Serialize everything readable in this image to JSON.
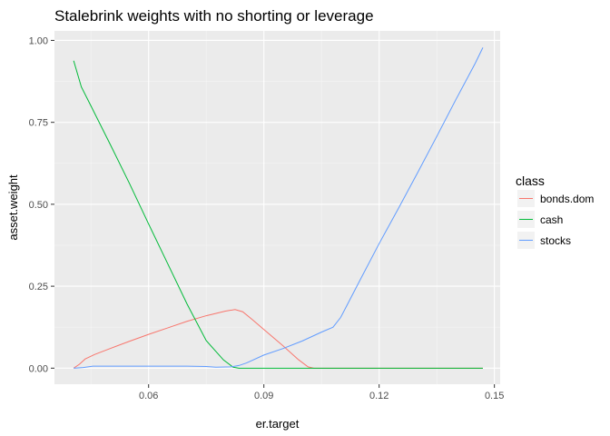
{
  "chart_data": {
    "type": "line",
    "title": "Stalebrink weights with no shorting or leverage",
    "xlabel": "er.target",
    "ylabel": "asset.weight",
    "xlim": [
      0.0355,
      0.1515
    ],
    "ylim": [
      -0.049,
      1.029
    ],
    "x_ticks": [
      0.06,
      0.09,
      0.12,
      0.15
    ],
    "x_tick_labels": [
      "0.06",
      "0.09",
      "0.12",
      "0.15"
    ],
    "y_ticks": [
      0.0,
      0.25,
      0.5,
      0.75,
      1.0
    ],
    "y_tick_labels": [
      "0.00",
      "0.25",
      "0.50",
      "0.75",
      "1.00"
    ],
    "grid": true,
    "legend": {
      "title": "class",
      "position": "right"
    },
    "series": [
      {
        "name": "bonds.dom",
        "color": "#F8766D",
        "points": [
          [
            0.0405,
            0.0
          ],
          [
            0.042,
            0.012
          ],
          [
            0.0435,
            0.028
          ],
          [
            0.046,
            0.042
          ],
          [
            0.05,
            0.06
          ],
          [
            0.055,
            0.082
          ],
          [
            0.06,
            0.103
          ],
          [
            0.065,
            0.123
          ],
          [
            0.07,
            0.143
          ],
          [
            0.075,
            0.16
          ],
          [
            0.08,
            0.174
          ],
          [
            0.0825,
            0.179
          ],
          [
            0.0845,
            0.172
          ],
          [
            0.087,
            0.148
          ],
          [
            0.09,
            0.118
          ],
          [
            0.095,
            0.068
          ],
          [
            0.099,
            0.026
          ],
          [
            0.1015,
            0.004
          ],
          [
            0.103,
            0.0
          ],
          [
            0.147,
            0.0
          ]
        ]
      },
      {
        "name": "cash",
        "color": "#00BA38",
        "points": [
          [
            0.0405,
            0.938
          ],
          [
            0.0425,
            0.858
          ],
          [
            0.045,
            0.8
          ],
          [
            0.05,
            0.683
          ],
          [
            0.055,
            0.564
          ],
          [
            0.06,
            0.44
          ],
          [
            0.065,
            0.318
          ],
          [
            0.07,
            0.196
          ],
          [
            0.075,
            0.084
          ],
          [
            0.0795,
            0.025
          ],
          [
            0.082,
            0.003
          ],
          [
            0.0835,
            0.0
          ],
          [
            0.1,
            0.0
          ],
          [
            0.147,
            0.0
          ]
        ]
      },
      {
        "name": "stocks",
        "color": "#619CFF",
        "points": [
          [
            0.0405,
            0.0
          ],
          [
            0.043,
            0.002
          ],
          [
            0.0455,
            0.006
          ],
          [
            0.05,
            0.006
          ],
          [
            0.06,
            0.006
          ],
          [
            0.07,
            0.006
          ],
          [
            0.075,
            0.005
          ],
          [
            0.0775,
            0.003
          ],
          [
            0.0815,
            0.004
          ],
          [
            0.0835,
            0.008
          ],
          [
            0.0855,
            0.016
          ],
          [
            0.09,
            0.04
          ],
          [
            0.095,
            0.06
          ],
          [
            0.1,
            0.083
          ],
          [
            0.105,
            0.11
          ],
          [
            0.108,
            0.125
          ],
          [
            0.11,
            0.155
          ],
          [
            0.115,
            0.268
          ],
          [
            0.12,
            0.38
          ],
          [
            0.125,
            0.487
          ],
          [
            0.13,
            0.596
          ],
          [
            0.135,
            0.707
          ],
          [
            0.14,
            0.82
          ],
          [
            0.145,
            0.93
          ],
          [
            0.147,
            0.978
          ]
        ]
      }
    ]
  }
}
